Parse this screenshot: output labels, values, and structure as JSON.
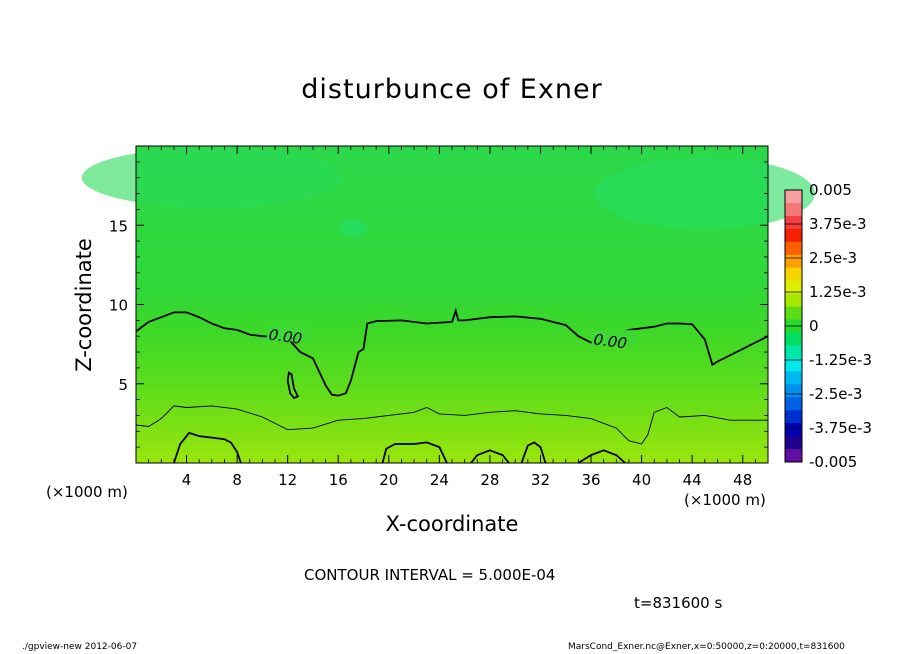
{
  "chart_data": {
    "type": "heatmap",
    "title": "disturbunce of Exner",
    "xlabel": "X-coordinate",
    "ylabel": "Z-coordinate",
    "x_unit_note": "(×1000 m)",
    "xlim": [
      0,
      50
    ],
    "ylim": [
      0,
      20
    ],
    "x_ticks": [
      4,
      8,
      12,
      16,
      20,
      24,
      28,
      32,
      36,
      40,
      44,
      48
    ],
    "y_ticks": [
      5,
      10,
      15
    ],
    "contour_labels": [
      "0.00",
      "0.00"
    ],
    "colorbar": {
      "range": [
        -0.005,
        0.005
      ],
      "tick_labels": [
        "0.005",
        "3.75e-3",
        "2.5e-3",
        "1.25e-3",
        "0",
        "-1.25e-3",
        "-2.5e-3",
        "-3.75e-3",
        "-0.005"
      ],
      "colors": [
        "#f6a0a0",
        "#f47878",
        "#f04040",
        "#f82000",
        "#fa6000",
        "#fba000",
        "#f8d400",
        "#dcef00",
        "#a8e800",
        "#5ddc18",
        "#28d830",
        "#00e060",
        "#00e8a8",
        "#00e8e8",
        "#00b8f0",
        "#0090f0",
        "#0060e8",
        "#0030d0",
        "#0000b0",
        "#20008c",
        "#6010a0"
      ]
    },
    "zero_contour": [
      [
        0,
        8.3
      ],
      [
        1,
        8.9
      ],
      [
        2,
        9.2
      ],
      [
        3,
        9.5
      ],
      [
        4,
        9.5
      ],
      [
        5,
        9.2
      ],
      [
        6,
        8.8
      ],
      [
        7,
        8.5
      ],
      [
        8,
        8.4
      ],
      [
        9,
        8.1
      ],
      [
        10,
        8.0
      ],
      [
        11,
        7.95
      ],
      [
        12,
        8.3
      ],
      [
        12.3,
        7.6
      ],
      [
        13,
        7.0
      ],
      [
        14,
        6.6
      ],
      [
        15,
        4.9
      ],
      [
        15.5,
        4.3
      ],
      [
        16,
        4.25
      ],
      [
        16.6,
        4.4
      ],
      [
        17,
        5.2
      ],
      [
        17.6,
        7.0
      ],
      [
        18,
        7.2
      ],
      [
        18.3,
        8.8
      ],
      [
        19,
        8.95
      ],
      [
        21,
        9.0
      ],
      [
        23,
        8.8
      ],
      [
        25,
        8.9
      ],
      [
        25.3,
        9.6
      ],
      [
        25.5,
        9.0
      ],
      [
        26,
        9.0
      ],
      [
        28,
        9.2
      ],
      [
        30,
        9.25
      ],
      [
        32,
        9.1
      ],
      [
        34,
        8.7
      ],
      [
        35,
        8.0
      ],
      [
        36,
        7.6
      ],
      [
        37,
        7.8
      ],
      [
        38,
        8.1
      ],
      [
        39,
        8.4
      ],
      [
        40,
        8.5
      ],
      [
        41,
        8.6
      ],
      [
        42,
        8.8
      ],
      [
        43,
        8.8
      ],
      [
        44,
        8.75
      ],
      [
        45,
        7.8
      ],
      [
        45.6,
        6.2
      ],
      [
        46,
        6.4
      ],
      [
        48,
        7.2
      ],
      [
        49,
        7.6
      ],
      [
        50,
        8.0
      ]
    ],
    "zero_contour_island": [
      [
        12.1,
        5.7
      ],
      [
        12.3,
        5.6
      ],
      [
        12.5,
        4.7
      ],
      [
        12.8,
        4.2
      ],
      [
        12.5,
        4.1
      ],
      [
        12.2,
        4.4
      ],
      [
        12.0,
        5.2
      ],
      [
        12.1,
        5.7
      ]
    ],
    "inner_contour": [
      [
        0,
        2.4
      ],
      [
        1,
        2.3
      ],
      [
        2,
        2.8
      ],
      [
        3,
        3.6
      ],
      [
        4,
        3.5
      ],
      [
        6,
        3.6
      ],
      [
        8,
        3.4
      ],
      [
        10,
        2.9
      ],
      [
        12,
        2.1
      ],
      [
        14,
        2.2
      ],
      [
        16,
        2.7
      ],
      [
        18,
        2.8
      ],
      [
        20,
        3.0
      ],
      [
        22,
        3.2
      ],
      [
        23,
        3.5
      ],
      [
        24,
        3.1
      ],
      [
        26,
        3.0
      ],
      [
        28,
        3.2
      ],
      [
        30,
        3.3
      ],
      [
        32,
        3.1
      ],
      [
        34,
        3.0
      ],
      [
        36,
        2.8
      ],
      [
        38,
        2.2
      ],
      [
        39,
        1.4
      ],
      [
        40,
        1.2
      ],
      [
        40.5,
        1.8
      ],
      [
        41,
        3.2
      ],
      [
        42,
        3.5
      ],
      [
        43,
        2.9
      ],
      [
        45,
        3.0
      ],
      [
        47,
        2.7
      ],
      [
        50,
        2.7
      ]
    ],
    "bottom_contour_1": [
      [
        3.0,
        0
      ],
      [
        3.5,
        1.2
      ],
      [
        4.2,
        1.9
      ],
      [
        5,
        1.7
      ],
      [
        6,
        1.6
      ],
      [
        7,
        1.5
      ],
      [
        7.5,
        1.3
      ],
      [
        8,
        0.7
      ],
      [
        8.3,
        0
      ]
    ],
    "bottom_contour_2": [
      [
        19.5,
        0
      ],
      [
        19.8,
        0.9
      ],
      [
        20.5,
        1.2
      ],
      [
        22,
        1.2
      ],
      [
        23,
        1.3
      ],
      [
        24,
        1.0
      ],
      [
        24.6,
        0
      ]
    ],
    "bottom_contour_3": [
      [
        26.5,
        0
      ],
      [
        27,
        0.5
      ],
      [
        28,
        0.8
      ],
      [
        29,
        0.5
      ],
      [
        29.5,
        0
      ]
    ],
    "bottom_contour_4": [
      [
        30.5,
        0
      ],
      [
        31,
        1.1
      ],
      [
        31.5,
        1.3
      ],
      [
        32,
        1.0
      ],
      [
        32.4,
        0
      ]
    ],
    "bottom_contour_5": [
      [
        35,
        0
      ],
      [
        36,
        0.5
      ],
      [
        37,
        0.8
      ],
      [
        38,
        0.5
      ],
      [
        38.7,
        0
      ]
    ]
  },
  "labels": {
    "contour_interval": "CONTOUR INTERVAL = 5.000E-04",
    "time": "t=831600 s",
    "footer_left": "./gpview-new  2012-06-07",
    "footer_right": "MarsCond_Exner.nc@Exner,x=0:50000,z=0:20000,t=831600"
  }
}
